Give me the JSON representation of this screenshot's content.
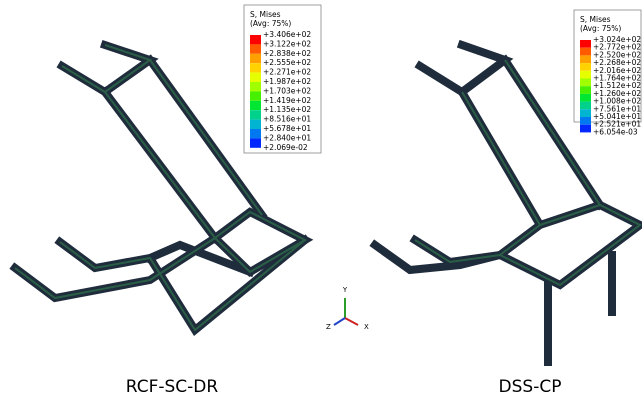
{
  "panels": [
    {
      "label": "RCF-SC-DR",
      "legend_title": "S, Mises",
      "legend_subtitle": "(Avg: 75%)",
      "legend_values": [
        "+3.406e+02",
        "+3.122e+02",
        "+2.838e+02",
        "+2.555e+02",
        "+2.271e+02",
        "+1.987e+02",
        "+1.703e+02",
        "+1.419e+02",
        "+1.135e+02",
        "+8.516e+01",
        "+5.678e+01",
        "+2.840e+01",
        "+2.069e-02"
      ]
    },
    {
      "label": "DSS-CP",
      "legend_title": "S, Mises",
      "legend_subtitle": "(Avg: 75%)",
      "legend_values": [
        "+3.024e+02",
        "+2.772e+02",
        "+2.520e+02",
        "+2.268e+02",
        "+2.016e+02",
        "+1.764e+02",
        "+1.512e+02",
        "+1.260e+02",
        "+1.008e+02",
        "+7.561e+01",
        "+5.041e+01",
        "+2.521e+01",
        "+6.054e-03"
      ]
    }
  ],
  "triad": {
    "y": "Y",
    "z": "Z",
    "x": "X"
  }
}
